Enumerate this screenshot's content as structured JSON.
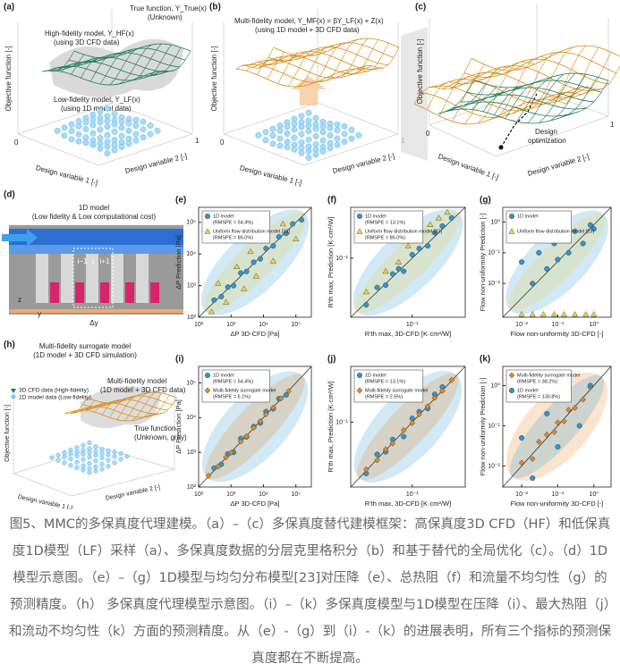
{
  "figure": {
    "a": {
      "label": "(a)",
      "true_fn": "True function, Y_True(x)",
      "true_note": "(Unknown)",
      "hf": "High-fidelity model, Y_HF(x)",
      "hf_note": "(using 3D CFD data)",
      "lf": "Low-fidelity model, Y_LF(x)",
      "lf_note": "(using 1D model data)",
      "ylabel": "Objective function [-]",
      "x1": "Design variable 1 [-]",
      "x2": "Design variable 2 [-]",
      "t0": "0",
      "t1": "1"
    },
    "b": {
      "label": "(b)",
      "mf": "Multi-fidelity model, Y_MF(x) = βY_LF(x) + Z(x)",
      "mf_note": "(using 1D model + 3D CFD data)",
      "ylabel": "Objective function [-]",
      "x1": "Design variable 1 [-]",
      "x2": "Design variable 2 [-]",
      "t0": "0",
      "t1": "1"
    },
    "c": {
      "label": "(c)",
      "opt1": "Design",
      "opt2": "optimization",
      "ylabel": "Objective function [-]",
      "x1": "Design variable 1 [-]",
      "x2": "Design variable 2 [-]",
      "t0": "0",
      "t1": "1"
    },
    "d": {
      "label": "(d)",
      "title": "1D model",
      "subtitle": "(Low fidelity & Low computational cost)",
      "i0": "i−1",
      "i1": "i",
      "i2": "i+1",
      "z": "z",
      "y": "y",
      "dy": "Δy"
    },
    "h": {
      "label": "(h)",
      "title": "Multi-fidelity surrogate model",
      "subtitle": "(1D model + 3D CFD simulation)",
      "hf": "3D CFD data (High-fidelity)",
      "lf": "1D model data (Low-fidelity)",
      "mf": "Multi-fidelity model",
      "mf_note": "(1D model + 3D CFD data)",
      "tf": "True function",
      "tf_note": "(Unknown, gray)",
      "ylabel": "Objective function [-]",
      "x1": "Design variable 1 [-]",
      "x2": "Design variable 2 [-]"
    }
  },
  "chart_data": [
    {
      "type": "scatter",
      "label": "(e)",
      "xlabel": "ΔP 3D-CFD [Pa]",
      "ylabel": "ΔP Prediction [Pa]",
      "log": true,
      "xlim": [
        100,
        300000
      ],
      "ylim": [
        100,
        300000
      ],
      "xticks": [
        {
          "value": 100,
          "label": "10²"
        },
        {
          "value": 1000,
          "label": "10³"
        },
        {
          "value": 10000,
          "label": "10⁴"
        },
        {
          "value": 100000,
          "label": "10⁵"
        }
      ],
      "yticks": [
        {
          "value": 100,
          "label": "10²"
        },
        {
          "value": 1000,
          "label": "10³"
        },
        {
          "value": 10000,
          "label": "10⁴"
        },
        {
          "value": 100000,
          "label": "10⁵"
        }
      ],
      "series": [
        {
          "name": "1D model",
          "legend_note": "(RMSPE = 54.4%)",
          "marker": "circle",
          "color": "#2e95d3",
          "x": [
            300,
            500,
            800,
            1200,
            2000,
            3000,
            5000,
            8000,
            12000,
            20000,
            30000,
            50000,
            80000,
            150000
          ],
          "values": [
            350,
            450,
            900,
            1000,
            2500,
            2800,
            5500,
            7000,
            15000,
            18000,
            35000,
            45000,
            90000,
            120000
          ]
        },
        {
          "name": "Uniform flow distribution model [23]",
          "legend_note": "(RMSPE = 85.0%)",
          "marker": "triangle",
          "color": "#f0d34a",
          "x": [
            250,
            400,
            700,
            1500,
            2500,
            4000,
            6000,
            10000,
            20000,
            40000,
            100000
          ],
          "values": [
            150,
            1200,
            300,
            4000,
            800,
            12000,
            2000,
            40000,
            6000,
            90000,
            30000
          ]
        }
      ]
    },
    {
      "type": "scatter",
      "label": "(f)",
      "xlabel": "R'th max, 3D-CFD [K·cm²/W]",
      "ylabel": "R'th max, Prediction [K·cm²/W]",
      "log": true,
      "xlim": [
        0.02,
        0.4
      ],
      "ylim": [
        0.02,
        0.4
      ],
      "xticks": [
        {
          "value": 0.1,
          "label": "10⁻¹"
        }
      ],
      "yticks": [
        {
          "value": 0.1,
          "label": "10⁻¹"
        }
      ],
      "series": [
        {
          "name": "1D model",
          "legend_note": "(RMSPE = 13.1%)",
          "marker": "circle",
          "color": "#2e95d3",
          "x": [
            0.03,
            0.04,
            0.05,
            0.06,
            0.07,
            0.08,
            0.1,
            0.12,
            0.15,
            0.18,
            0.22,
            0.28
          ],
          "values": [
            0.028,
            0.045,
            0.048,
            0.065,
            0.075,
            0.07,
            0.11,
            0.13,
            0.14,
            0.2,
            0.24,
            0.3
          ]
        },
        {
          "name": "Uniform flow distribution model [23]",
          "legend_note": "(RMSPE = 85.0%)",
          "marker": "triangle",
          "color": "#f0d34a",
          "x": [
            0.03,
            0.05,
            0.07,
            0.09,
            0.12,
            0.16,
            0.2,
            0.25
          ],
          "values": [
            0.04,
            0.07,
            0.09,
            0.14,
            0.18,
            0.25,
            0.3,
            0.35
          ]
        }
      ]
    },
    {
      "type": "scatter",
      "label": "(g)",
      "xlabel": "Flow non-uniformity 3D-CFD [-]",
      "ylabel": "Flow non-uniformity Prediction [-]",
      "log": true,
      "xlim": [
        0.003,
        3
      ],
      "ylim": [
        0.0008,
        3
      ],
      "xticks": [
        {
          "value": 0.01,
          "label": "10⁻²"
        },
        {
          "value": 0.1,
          "label": "10⁻¹"
        },
        {
          "value": 1,
          "label": "10⁰"
        }
      ],
      "yticks": [
        {
          "value": 0.01,
          "label": "10⁻²"
        },
        {
          "value": 0.1,
          "label": "10⁻¹"
        },
        {
          "value": 1,
          "label": "10⁰"
        }
      ],
      "series": [
        {
          "name": "1D model",
          "marker": "circle",
          "color": "#2e95d3",
          "x": [
            0.01,
            0.02,
            0.03,
            0.05,
            0.08,
            0.1,
            0.15,
            0.2,
            0.3,
            0.5,
            0.8,
            1
          ],
          "values": [
            0.05,
            0.01,
            0.1,
            0.03,
            0.2,
            0.06,
            0.3,
            0.1,
            0.5,
            0.2,
            0.8,
            0.6
          ]
        },
        {
          "name": "Uniform flow distribution model [23]",
          "marker": "triangle",
          "color": "#f0d34a",
          "x": [
            0.01,
            0.02,
            0.04,
            0.08,
            0.15,
            0.3,
            0.6,
            1
          ],
          "values": [
            0.001,
            0.001,
            0.001,
            0.001,
            0.001,
            0.001,
            0.001,
            0.001
          ]
        }
      ]
    },
    {
      "type": "scatter",
      "label": "(i)",
      "xlabel": "ΔP 3D-CFD [Pa]",
      "ylabel": "ΔP Prediction [Pa]",
      "log": true,
      "xlim": [
        100,
        300000
      ],
      "ylim": [
        100,
        300000
      ],
      "xticks": [
        {
          "value": 100,
          "label": "10²"
        },
        {
          "value": 1000,
          "label": "10³"
        },
        {
          "value": 10000,
          "label": "10⁴"
        },
        {
          "value": 100000,
          "label": "10⁵"
        }
      ],
      "yticks": [
        {
          "value": 100,
          "label": "10²"
        },
        {
          "value": 1000,
          "label": "10³"
        },
        {
          "value": 10000,
          "label": "10⁴"
        },
        {
          "value": 100000,
          "label": "10⁵"
        }
      ],
      "series": [
        {
          "name": "1D model",
          "legend_note": "(RMSPE = 54.4%)",
          "marker": "circle",
          "color": "#2e95d3",
          "x": [
            300,
            500,
            800,
            1200,
            2000,
            3000,
            5000,
            8000,
            12000,
            20000,
            30000,
            50000
          ],
          "values": [
            350,
            450,
            900,
            1000,
            2500,
            2800,
            5500,
            7000,
            15000,
            18000,
            35000,
            45000
          ]
        },
        {
          "name": "Multi-fidelity surrogate model",
          "legend_note": "(RMSPE = 6.1%)",
          "marker": "diamond",
          "color": "#e8861a",
          "x": [
            200,
            400,
            700,
            1000,
            2000,
            3000,
            5000,
            8000,
            12000,
            20000,
            35000,
            60000
          ],
          "values": [
            210,
            390,
            720,
            980,
            2050,
            2900,
            5100,
            7900,
            12500,
            19500,
            36000,
            58000
          ]
        }
      ]
    },
    {
      "type": "scatter",
      "label": "(j)",
      "xlabel": "R'th max, 3D-CFD [K·cm²/W]",
      "ylabel": "R'th max, Prediction [K·cm²/W]",
      "log": true,
      "xlim": [
        0.02,
        0.4
      ],
      "ylim": [
        0.02,
        0.4
      ],
      "xticks": [
        {
          "value": 0.1,
          "label": "10⁻¹"
        }
      ],
      "yticks": [
        {
          "value": 0.1,
          "label": "10⁻¹"
        }
      ],
      "series": [
        {
          "name": "1D model",
          "legend_note": "(RMSPE = 13.1%)",
          "marker": "circle",
          "color": "#2e95d3",
          "x": [
            0.03,
            0.04,
            0.05,
            0.06,
            0.08,
            0.1,
            0.12,
            0.15,
            0.18,
            0.22
          ],
          "values": [
            0.028,
            0.045,
            0.048,
            0.065,
            0.07,
            0.11,
            0.13,
            0.14,
            0.2,
            0.24
          ]
        },
        {
          "name": "Multi-fidelity surrogate model",
          "legend_note": "(RMSPE = 2.5%)",
          "marker": "diamond",
          "color": "#e8861a",
          "x": [
            0.03,
            0.04,
            0.05,
            0.06,
            0.08,
            0.1,
            0.12,
            0.15,
            0.18,
            0.22,
            0.28
          ],
          "values": [
            0.031,
            0.039,
            0.051,
            0.059,
            0.082,
            0.098,
            0.122,
            0.148,
            0.183,
            0.218,
            0.285
          ]
        }
      ]
    },
    {
      "type": "scatter",
      "label": "(k)",
      "xlabel": "Flow non-uniformity 3D-CFD [-]",
      "ylabel": "Flow non-uniformity Prediction [-]",
      "log": true,
      "xlim": [
        0.003,
        3
      ],
      "ylim": [
        0.003,
        3
      ],
      "xticks": [
        {
          "value": 0.01,
          "label": "10⁻²"
        },
        {
          "value": 0.1,
          "label": "10⁻¹"
        },
        {
          "value": 1,
          "label": "10⁰"
        }
      ],
      "yticks": [
        {
          "value": 0.01,
          "label": "10⁻²"
        },
        {
          "value": 0.1,
          "label": "10⁻¹"
        },
        {
          "value": 1,
          "label": "10⁰"
        }
      ],
      "series": [
        {
          "name": "Multi-fidelity surrogate model",
          "legend_note": "(RMSPE = 38.2%)",
          "marker": "diamond",
          "color": "#e8861a",
          "x": [
            0.01,
            0.02,
            0.03,
            0.05,
            0.08,
            0.1,
            0.15,
            0.2,
            0.3,
            0.5,
            0.8
          ],
          "values": [
            0.012,
            0.015,
            0.04,
            0.06,
            0.07,
            0.12,
            0.13,
            0.25,
            0.28,
            0.45,
            0.9
          ]
        },
        {
          "name": "1D model",
          "legend_note": "(RMSPE = 130.8%)",
          "marker": "circle",
          "color": "#2e95d3",
          "x": [
            0.01,
            0.02,
            0.05,
            0.1,
            0.2,
            0.4,
            0.8
          ],
          "values": [
            0.05,
            0.005,
            0.2,
            0.03,
            0.6,
            0.1,
            1
          ]
        }
      ]
    }
  ],
  "caption": "图5、MMC的多保真度代理建模。（a）–（c）多保真度替代建模框架：高保真度3D CFD（HF）和低保真度1D模型（LF）采样（a）、多保真度数据的分层克里格积分（b）和基于替代的全局优化（c）。（d）1D模型示意图。（e）–（g）1D模型与均匀分布模型[23]对压降（e）、总热阻（f）和流量不均匀性（g）的预测精度。（h） 多保真度代理模型示意图。（i）–（k）多保真度模型与1D模型在压降（i）、最大热阻（j）和流动不均匀性（k）方面的预测精度。从（e）-（g）到（i）-（k）的进展表明，所有三个指标的预测保真度都在不断提高。"
}
